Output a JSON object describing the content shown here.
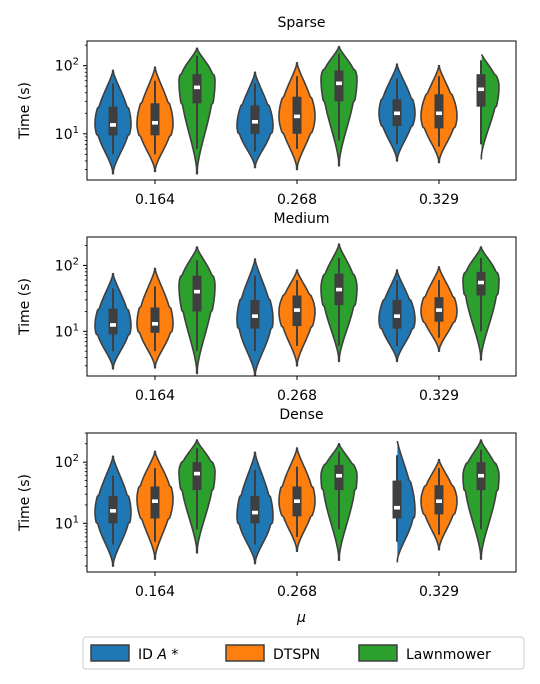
{
  "chart_data": {
    "type": "violin",
    "shared_xlabel": "μ",
    "legend": {
      "placement": "bottom-center",
      "entries": [
        {
          "name_pre": "ID ",
          "name_italic": "A",
          "name_post": " *",
          "color": "#1f77b4"
        },
        {
          "name_pre": "DTSPN",
          "name_italic": "",
          "name_post": "",
          "color": "#ff7f0e"
        },
        {
          "name_pre": "Lawnmower",
          "name_italic": "",
          "name_post": "",
          "color": "#2ca02c"
        }
      ]
    },
    "yscale": "log",
    "ylabel": "Time (s)",
    "yticks": [
      {
        "value": 10,
        "base": "10",
        "exp": "1"
      },
      {
        "value": 100,
        "base": "10",
        "exp": "2"
      }
    ],
    "categories": [
      "0.164",
      "0.268",
      "0.329"
    ],
    "panels": [
      {
        "title": "Sparse",
        "ylim": [
          2.1,
          230
        ],
        "groups": [
          [
            {
              "min": 2.6,
              "q1": 9.5,
              "median": 13.5,
              "q3": 25,
              "max": 85,
              "wmin": 5,
              "wmax": 55,
              "peak": 14
            },
            {
              "min": 2.8,
              "q1": 9.5,
              "median": 14.5,
              "q3": 28,
              "max": 95,
              "wmin": 5,
              "wmax": 60,
              "peak": 14
            },
            {
              "min": 2.6,
              "q1": 28,
              "median": 48,
              "q3": 75,
              "max": 180,
              "wmin": 6,
              "wmax": 140,
              "peak": 60
            }
          ],
          [
            {
              "min": 3.2,
              "q1": 10,
              "median": 15,
              "q3": 26,
              "max": 80,
              "wmin": 5.5,
              "wmax": 55,
              "peak": 13
            },
            {
              "min": 3,
              "q1": 10,
              "median": 18,
              "q3": 35,
              "max": 110,
              "wmin": 6,
              "wmax": 70,
              "peak": 18
            },
            {
              "min": 3.4,
              "q1": 30,
              "median": 55,
              "q3": 85,
              "max": 190,
              "wmin": 8,
              "wmax": 150,
              "peak": 65
            }
          ],
          [
            {
              "min": 4,
              "q1": 13,
              "median": 20,
              "q3": 32,
              "max": 105,
              "wmin": 7,
              "wmax": 65,
              "peak": 20
            },
            {
              "min": 3.8,
              "q1": 12,
              "median": 20,
              "q3": 38,
              "max": 100,
              "wmin": 6.5,
              "wmax": 70,
              "peak": 18
            },
            {
              "min": 4.2,
              "q1": 25,
              "median": 45,
              "q3": 75,
              "max": 155,
              "wmin": 7,
              "wmax": 120,
              "peak": 50
            }
          ]
        ]
      },
      {
        "title": "Medium",
        "ylim": [
          2.1,
          270
        ],
        "groups": [
          [
            {
              "min": 2.7,
              "q1": 9,
              "median": 12.5,
              "q3": 22,
              "max": 75,
              "wmin": 5,
              "wmax": 45,
              "peak": 12
            },
            {
              "min": 2.8,
              "q1": 9.5,
              "median": 13,
              "q3": 23,
              "max": 90,
              "wmin": 5,
              "wmax": 48,
              "peak": 13
            },
            {
              "min": 2.3,
              "q1": 20,
              "median": 40,
              "q3": 70,
              "max": 190,
              "wmin": 5,
              "wmax": 120,
              "peak": 50
            }
          ],
          [
            {
              "min": 2.1,
              "q1": 11,
              "median": 17,
              "q3": 30,
              "max": 125,
              "wmin": 5,
              "wmax": 70,
              "peak": 15
            },
            {
              "min": 3,
              "q1": 12,
              "median": 21,
              "q3": 35,
              "max": 85,
              "wmin": 6,
              "wmax": 60,
              "peak": 20
            },
            {
              "min": 3.5,
              "q1": 25,
              "median": 43,
              "q3": 75,
              "max": 210,
              "wmin": 6,
              "wmax": 130,
              "peak": 45
            }
          ],
          [
            {
              "min": 3.5,
              "q1": 11,
              "median": 17,
              "q3": 30,
              "max": 85,
              "wmin": 6,
              "wmax": 60,
              "peak": 15
            },
            {
              "min": 5,
              "q1": 14,
              "median": 21,
              "q3": 33,
              "max": 95,
              "wmin": 8,
              "wmax": 60,
              "peak": 20
            },
            {
              "min": 3.7,
              "q1": 35,
              "median": 55,
              "q3": 80,
              "max": 190,
              "wmin": 10,
              "wmax": 130,
              "peak": 60
            }
          ]
        ]
      },
      {
        "title": "Dense",
        "ylim": [
          1.6,
          300
        ],
        "groups": [
          [
            {
              "min": 2,
              "q1": 10,
              "median": 16,
              "q3": 28,
              "max": 125,
              "wmin": 4.5,
              "wmax": 60,
              "peak": 15
            },
            {
              "min": 2.6,
              "q1": 12,
              "median": 23,
              "q3": 40,
              "max": 150,
              "wmin": 5,
              "wmax": 80,
              "peak": 25
            },
            {
              "min": 3.3,
              "q1": 35,
              "median": 65,
              "q3": 100,
              "max": 230,
              "wmin": 8,
              "wmax": 170,
              "peak": 70
            }
          ],
          [
            {
              "min": 2.2,
              "q1": 10,
              "median": 15,
              "q3": 28,
              "max": 145,
              "wmin": 4.5,
              "wmax": 75,
              "peak": 13
            },
            {
              "min": 3.5,
              "q1": 13,
              "median": 23,
              "q3": 40,
              "max": 170,
              "wmin": 6,
              "wmax": 85,
              "peak": 23
            },
            {
              "min": 2.5,
              "q1": 35,
              "median": 60,
              "q3": 90,
              "max": 200,
              "wmin": 8,
              "wmax": 150,
              "peak": 60
            }
          ],
          [
            {
              "min": 2.3,
              "q1": 12,
              "median": 18,
              "q3": 50,
              "max": 240,
              "wmin": 5,
              "wmax": 130,
              "peak": 16
            },
            {
              "min": 3.7,
              "q1": 14,
              "median": 23,
              "q3": 42,
              "max": 110,
              "wmin": 6.5,
              "wmax": 80,
              "peak": 23
            },
            {
              "min": 2.6,
              "q1": 35,
              "median": 60,
              "q3": 100,
              "max": 230,
              "wmin": 8,
              "wmax": 160,
              "peak": 60
            }
          ]
        ]
      }
    ]
  }
}
